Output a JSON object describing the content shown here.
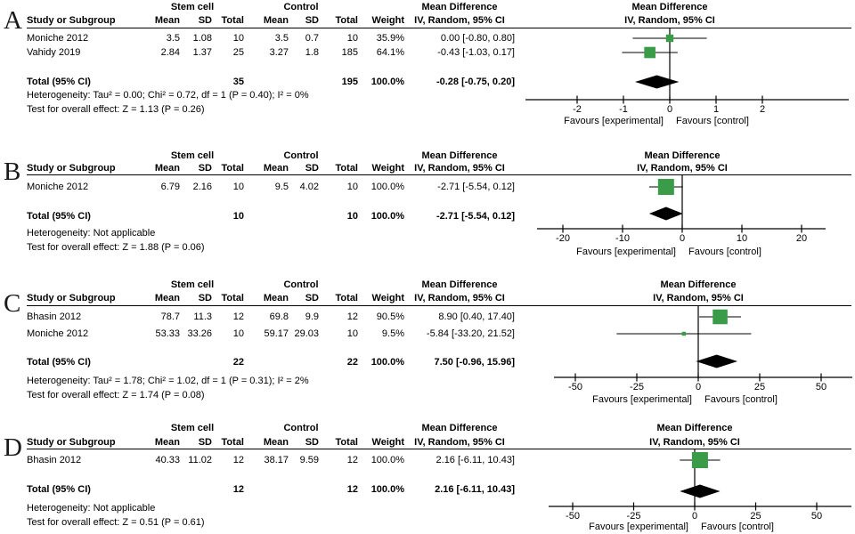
{
  "colors": {
    "effect_square": "#3a9c49",
    "diamond": "#000000",
    "axis_line": "#000000",
    "text": "#000000"
  },
  "chart_data": [
    {
      "type": "forest",
      "panel": "A",
      "group_headers": [
        "Stem cell",
        "Control",
        "Mean Difference"
      ],
      "columns": [
        "Study or Subgroup",
        "Mean",
        "SD",
        "Total",
        "Mean",
        "SD",
        "Total",
        "Weight",
        "IV, Random, 95% CI"
      ],
      "plot_title": "Mean Difference",
      "plot_subtitle": "IV, Random, 95% CI",
      "studies": [
        {
          "name": "Moniche 2012",
          "sc_mean": "3.5",
          "sc_sd": "1.08",
          "sc_total": "10",
          "c_mean": "3.5",
          "c_sd": "0.7",
          "c_total": "10",
          "weight": "35.9%",
          "ci_text": "0.00 [-0.80, 0.80]",
          "md": 0.0,
          "lo": -0.8,
          "hi": 0.8,
          "weight_pct": 35.9
        },
        {
          "name": "Vahidy 2019",
          "sc_mean": "2.84",
          "sc_sd": "1.37",
          "sc_total": "25",
          "c_mean": "3.27",
          "c_sd": "1.8",
          "c_total": "185",
          "weight": "64.1%",
          "ci_text": "-0.43 [-1.03, 0.17]",
          "md": -0.43,
          "lo": -1.03,
          "hi": 0.17,
          "weight_pct": 64.1
        }
      ],
      "total": {
        "label": "Total (95% CI)",
        "sc_total": "35",
        "c_total": "195",
        "weight": "100.0%",
        "ci_text": "-0.28 [-0.75, 0.20]",
        "md": -0.28,
        "lo": -0.75,
        "hi": 0.2
      },
      "heterogeneity": "Heterogeneity: Tau² = 0.00; Chi² = 0.72, df = 1 (P = 0.40); I² = 0%",
      "overall_effect": "Test for overall effect: Z = 1.13 (P = 0.26)",
      "axis": {
        "ticks": [
          -2,
          -1,
          0,
          1,
          2
        ],
        "tick_interval": 1
      },
      "favours_left": "Favours [experimental]",
      "favours_right": "Favours [control]"
    },
    {
      "type": "forest",
      "panel": "B",
      "group_headers": [
        "Stem cell",
        "Control",
        "Mean Difference"
      ],
      "columns": [
        "Study or Subgroup",
        "Mean",
        "SD",
        "Total",
        "Mean",
        "SD",
        "Total",
        "Weight",
        "IV, Random, 95% CI"
      ],
      "plot_title": "Mean Difference",
      "plot_subtitle": "IV, Random, 95% CI",
      "studies": [
        {
          "name": "Moniche 2012",
          "sc_mean": "6.79",
          "sc_sd": "2.16",
          "sc_total": "10",
          "c_mean": "9.5",
          "c_sd": "4.02",
          "c_total": "10",
          "weight": "100.0%",
          "ci_text": "-2.71 [-5.54, 0.12]",
          "md": -2.71,
          "lo": -5.54,
          "hi": 0.12,
          "weight_pct": 100.0
        }
      ],
      "total": {
        "label": "Total (95% CI)",
        "sc_total": "10",
        "c_total": "10",
        "weight": "100.0%",
        "ci_text": "-2.71 [-5.54, 0.12]",
        "md": -2.71,
        "lo": -5.54,
        "hi": 0.12
      },
      "heterogeneity": "Heterogeneity: Not applicable",
      "overall_effect": "Test for overall effect: Z = 1.88 (P = 0.06)",
      "axis": {
        "ticks": [
          -20,
          -10,
          0,
          10,
          20
        ],
        "tick_interval": 10
      },
      "favours_left": "Favours [experimental]",
      "favours_right": "Favours [control]"
    },
    {
      "type": "forest",
      "panel": "C",
      "group_headers": [
        "Stem cell",
        "Control",
        "Mean Difference"
      ],
      "columns": [
        "Study or Subgroup",
        "Mean",
        "SD",
        "Total",
        "Mean",
        "SD",
        "Total",
        "Weight",
        "IV, Random, 95% CI"
      ],
      "plot_title": "Mean Difference",
      "plot_subtitle": "IV, Random, 95% CI",
      "studies": [
        {
          "name": "Bhasin 2012",
          "sc_mean": "78.7",
          "sc_sd": "11.3",
          "sc_total": "12",
          "c_mean": "69.8",
          "c_sd": "9.9",
          "c_total": "12",
          "weight": "90.5%",
          "ci_text": "8.90 [0.40, 17.40]",
          "md": 8.9,
          "lo": 0.4,
          "hi": 17.4,
          "weight_pct": 90.5
        },
        {
          "name": "Moniche 2012",
          "sc_mean": "53.33",
          "sc_sd": "33.26",
          "sc_total": "10",
          "c_mean": "59.17",
          "c_sd": "29.03",
          "c_total": "10",
          "weight": "9.5%",
          "ci_text": "-5.84 [-33.20, 21.52]",
          "md": -5.84,
          "lo": -33.2,
          "hi": 21.52,
          "weight_pct": 9.5
        }
      ],
      "total": {
        "label": "Total (95% CI)",
        "sc_total": "22",
        "c_total": "22",
        "weight": "100.0%",
        "ci_text": "7.50 [-0.96, 15.96]",
        "md": 7.5,
        "lo": -0.96,
        "hi": 15.96
      },
      "heterogeneity": "Heterogeneity: Tau² = 1.78; Chi² = 1.02, df = 1 (P = 0.31); I² = 2%",
      "overall_effect": "Test for overall effect: Z = 1.74 (P = 0.08)",
      "axis": {
        "ticks": [
          -50,
          -25,
          0,
          25,
          50
        ],
        "tick_interval": 25
      },
      "favours_left": "Favours [experimental]",
      "favours_right": "Favours [control]"
    },
    {
      "type": "forest",
      "panel": "D",
      "group_headers": [
        "Stem cell",
        "Control",
        "Mean Difference"
      ],
      "columns": [
        "Study or Subgroup",
        "Mean",
        "SD",
        "Total",
        "Mean",
        "SD",
        "Total",
        "Weight",
        "IV, Random, 95% CI"
      ],
      "plot_title": "Mean Difference",
      "plot_subtitle": "IV, Random, 95% CI",
      "studies": [
        {
          "name": "Bhasin 2012",
          "sc_mean": "40.33",
          "sc_sd": "11.02",
          "sc_total": "12",
          "c_mean": "38.17",
          "c_sd": "9.59",
          "c_total": "12",
          "weight": "100.0%",
          "ci_text": "2.16 [-6.11, 10.43]",
          "md": 2.16,
          "lo": -6.11,
          "hi": 10.43,
          "weight_pct": 100.0
        }
      ],
      "total": {
        "label": "Total (95% CI)",
        "sc_total": "12",
        "c_total": "12",
        "weight": "100.0%",
        "ci_text": "2.16 [-6.11, 10.43]",
        "md": 2.16,
        "lo": -6.11,
        "hi": 10.43
      },
      "heterogeneity": "Heterogeneity: Not applicable",
      "overall_effect": "Test for overall effect: Z = 0.51 (P = 0.61)",
      "axis": {
        "ticks": [
          -50,
          -25,
          0,
          25,
          50
        ],
        "tick_interval": 25
      },
      "favours_left": "Favours [experimental]",
      "favours_right": "Favours [control]"
    }
  ]
}
